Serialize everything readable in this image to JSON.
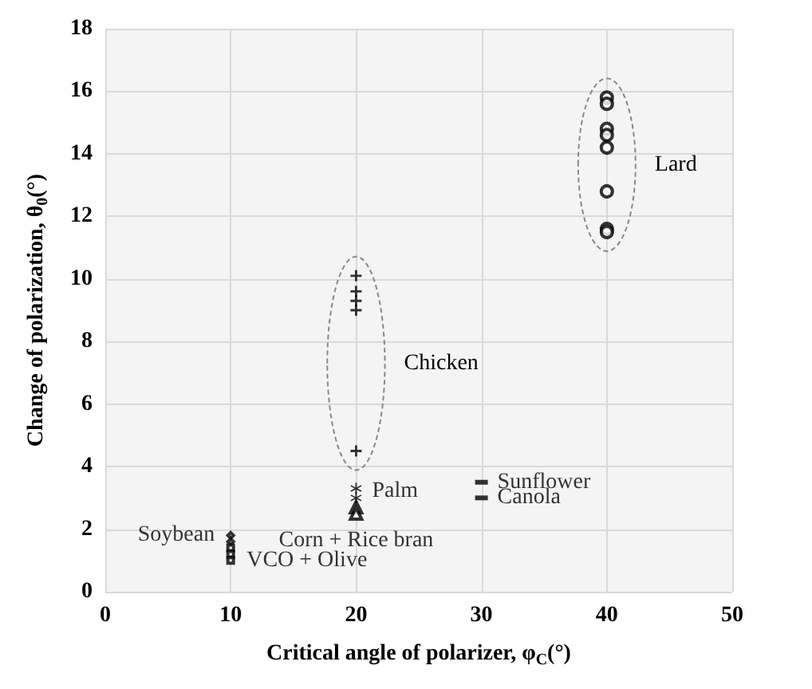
{
  "chart_data": {
    "type": "scatter",
    "xlabel": "Critical angle of polarizer, φ$_{C}$(°)",
    "ylabel": "Change of polarization, θ$_{0}$(°)",
    "xlim": [
      0,
      50
    ],
    "xticks": [
      0,
      10,
      20,
      30,
      40,
      50
    ],
    "ylim": [
      0,
      18
    ],
    "yticks": [
      0,
      2,
      4,
      6,
      8,
      10,
      12,
      14,
      16,
      18
    ],
    "grid": true,
    "series": [
      {
        "color": "#000000",
        "marker": "diamond",
        "x": [
          10,
          10
        ],
        "values": [
          1.8,
          1.6
        ]
      },
      {
        "color": "#000000",
        "marker": "square",
        "x": [
          10,
          10,
          10
        ],
        "values": [
          1.4,
          1.2,
          1.0
        ]
      },
      {
        "color": "#000000",
        "marker": "triangle",
        "x": [
          20,
          20
        ],
        "values": [
          2.7,
          2.5
        ]
      },
      {
        "color": "#000000",
        "marker": "star",
        "x": [
          20,
          20
        ],
        "values": [
          3.3,
          3.0
        ]
      },
      {
        "name": "Chicken",
        "color": "#000000",
        "marker": "cross",
        "x": [
          20,
          20,
          20,
          20,
          20
        ],
        "values": [
          10.1,
          9.6,
          9.3,
          9.0,
          4.5
        ]
      },
      {
        "color": "#000000",
        "marker": "square",
        "x": [
          30
        ],
        "values": [
          3.5
        ]
      },
      {
        "color": "#000000",
        "marker": "square",
        "x": [
          30
        ],
        "values": [
          3.0
        ]
      },
      {
        "name": "Lard",
        "color": "#000000",
        "marker": "circle",
        "x": [
          40,
          40,
          40,
          40,
          40,
          40,
          40,
          40
        ],
        "values": [
          15.8,
          15.6,
          14.8,
          14.6,
          14.2,
          12.8,
          11.6,
          11.5
        ]
      }
    ],
    "annotations": [
      {
        "text": "Soybean",
        "x": 10,
        "y": 1.8
      },
      {
        "text": "VCO + Olive",
        "x": 10,
        "y": 1.0
      },
      {
        "text": "Corn + Rice bran",
        "x": 20,
        "y": 2.5
      },
      {
        "text": "Palm",
        "x": 20,
        "y": 3.2
      },
      {
        "text": "Sunflower",
        "x": 30,
        "y": 3.5
      },
      {
        "text": "Canola",
        "x": 30,
        "y": 3.0
      }
    ]
  }
}
